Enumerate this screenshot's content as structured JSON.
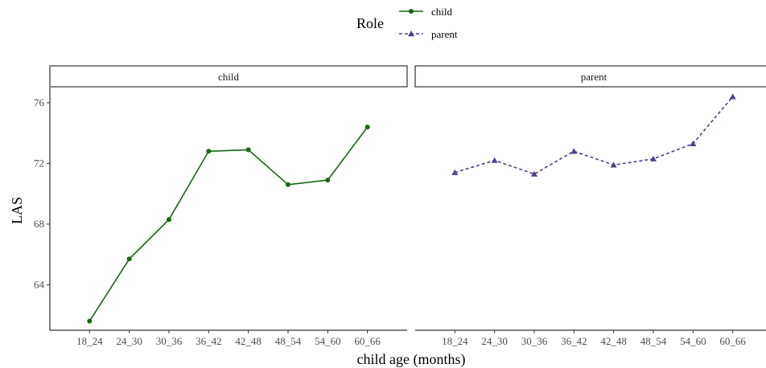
{
  "chart_data": {
    "type": "line",
    "facet_by": "Role",
    "categories": [
      "18_24",
      "24_30",
      "30_36",
      "36_42",
      "42_48",
      "48_54",
      "54_60",
      "60_66"
    ],
    "xlabel": "child age (months)",
    "ylabel": "LAS",
    "ylim": [
      61.0,
      77.0
    ],
    "yticks": [
      64,
      68,
      72,
      76
    ],
    "grid": false,
    "legend": {
      "title": "Role",
      "placement": "top",
      "entries": [
        "child",
        "parent"
      ]
    },
    "series": [
      {
        "name": "child",
        "facet": "child",
        "values": [
          61.6,
          65.7,
          68.3,
          72.8,
          72.9,
          70.6,
          70.9,
          74.4
        ],
        "color": "#1a6614",
        "marker": "circle",
        "line_style": "solid"
      },
      {
        "name": "parent",
        "facet": "parent",
        "values": [
          71.4,
          72.2,
          71.3,
          72.8,
          71.9,
          72.3,
          73.3,
          76.4
        ],
        "color": "#54408a",
        "marker": "triangle",
        "line_style": "dashed"
      }
    ]
  }
}
